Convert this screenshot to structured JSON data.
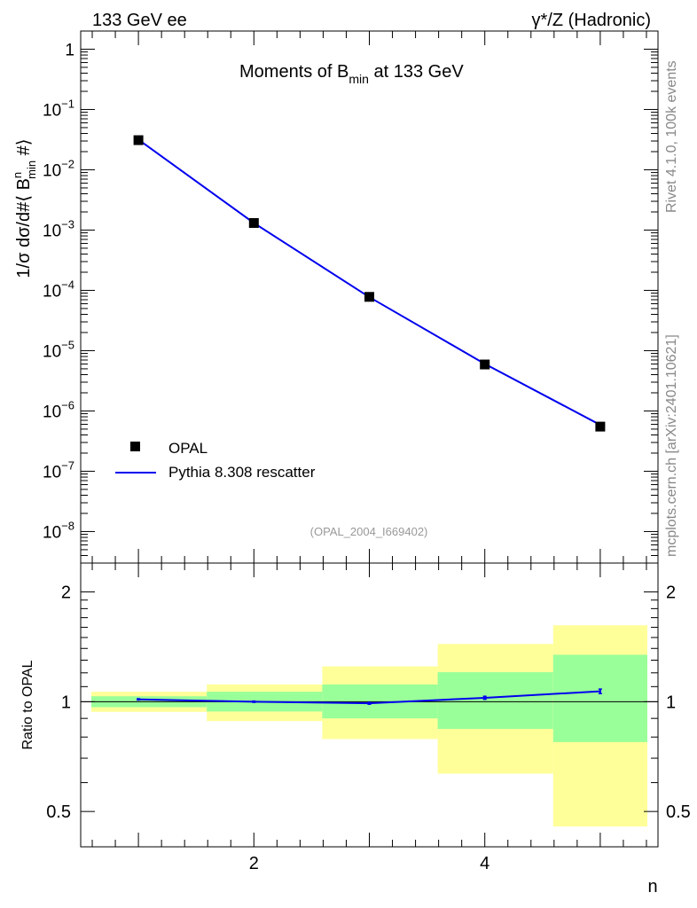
{
  "header": {
    "left": "133 GeV ee",
    "right": "γ*/Z (Hadronic)"
  },
  "side_labels": {
    "rivet": "Rivet 4.1.0,  100k events",
    "mcplots": "mcplots.cern.ch [arXiv:2401.10621]"
  },
  "watermark": "(OPAL_2004_I669402)",
  "chart_data": [
    {
      "type": "scatter",
      "title": "Moments of B_min at 133 GeV",
      "title_parts": {
        "main": "Moments of B",
        "sub": "min",
        "tail": " at 133 GeV"
      },
      "ylabel": "1/σ  dσ/d#⟨ B^n_min #⟩",
      "ylabel_parts": {
        "a": "1/σ  dσ/d#⟨ B",
        "sup": "n",
        "sub": "min",
        "b": "  #⟩"
      },
      "yscale": "log",
      "ylim": [
        3e-09,
        2
      ],
      "xlim": [
        0.5,
        5.5
      ],
      "ytick_labels": [
        {
          "base": "1",
          "exp": "",
          "value": 1
        },
        {
          "base": "10",
          "exp": "−1",
          "value": 0.1
        },
        {
          "base": "10",
          "exp": "−2",
          "value": 0.01
        },
        {
          "base": "10",
          "exp": "−3",
          "value": 0.001
        },
        {
          "base": "10",
          "exp": "−4",
          "value": 0.0001
        },
        {
          "base": "10",
          "exp": "−5",
          "value": 1e-05
        },
        {
          "base": "10",
          "exp": "−6",
          "value": 1e-06
        },
        {
          "base": "10",
          "exp": "−7",
          "value": 1e-07
        },
        {
          "base": "10",
          "exp": "−8",
          "value": 1e-08
        }
      ],
      "legend_position": "bottom-left",
      "series": [
        {
          "name": "OPAL",
          "marker": "square",
          "color": "#000000",
          "x": [
            1,
            2,
            3,
            4,
            5
          ],
          "values": [
            0.031,
            0.00131,
            7.8e-05,
            5.9e-06,
            5.5e-07
          ]
        },
        {
          "name": "Pythia 8.308 rescatter",
          "marker": "line",
          "color": "#0000ee",
          "x": [
            1,
            2,
            3,
            4,
            5
          ],
          "values": [
            0.0316,
            0.00131,
            7.73e-05,
            6.04e-06,
            5.87e-07
          ]
        }
      ]
    },
    {
      "type": "line",
      "ylabel": "Ratio to OPAL",
      "xlabel": "n",
      "yscale": "log",
      "ylim": [
        0.4,
        2.4
      ],
      "xlim": [
        0.5,
        5.5
      ],
      "ytick_labels": [
        {
          "text": "0.5",
          "value": 0.5
        },
        {
          "text": "1",
          "value": 1
        },
        {
          "text": "2",
          "value": 2
        }
      ],
      "xtick_labels": [
        {
          "text": "2",
          "value": 2
        },
        {
          "text": "4",
          "value": 4
        }
      ],
      "bands": {
        "inner_color": "#99ff99",
        "outer_color": "#ffff99",
        "bins": [
          {
            "lo": 0.5,
            "hi": 1.5,
            "inner": [
              0.966,
              1.035
            ],
            "outer": [
              0.938,
              1.065
            ]
          },
          {
            "lo": 1.5,
            "hi": 2.5,
            "inner": [
              0.94,
              1.065
            ],
            "outer": [
              0.885,
              1.115
            ]
          },
          {
            "lo": 2.5,
            "hi": 3.5,
            "inner": [
              0.9,
              1.115
            ],
            "outer": [
              0.79,
              1.25
            ]
          },
          {
            "lo": 3.5,
            "hi": 4.5,
            "inner": [
              0.842,
              1.205
            ],
            "outer": [
              0.635,
              1.44
            ]
          },
          {
            "lo": 4.5,
            "hi": 5.5,
            "inner": [
              0.775,
              1.345
            ],
            "outer": [
              0.455,
              1.62
            ]
          }
        ]
      },
      "series": [
        {
          "name": "Pythia 8.308 rescatter / OPAL",
          "color": "#0000ee",
          "x": [
            1,
            2,
            3,
            4,
            5
          ],
          "values": [
            1.015,
            1.0,
            0.99,
            1.025,
            1.068
          ],
          "errors": [
            0.004,
            0.004,
            0.006,
            0.01,
            0.015
          ]
        }
      ]
    }
  ]
}
